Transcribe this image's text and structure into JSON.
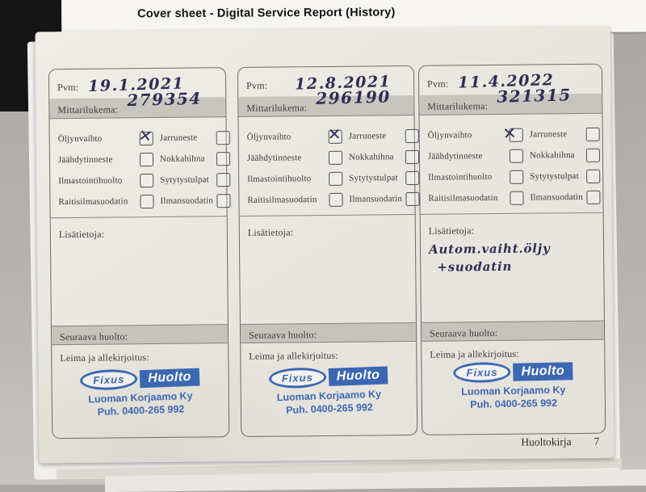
{
  "header": {
    "title": "Cover sheet - Digital Service Report (History)"
  },
  "labels": {
    "date": "Pvm:",
    "odometer": "Mittarilukema:",
    "notes": "Lisätietoja:",
    "next_service": "Seuraava huolto:",
    "stamp_signature": "Leima ja allekirjoitus:"
  },
  "service_items": [
    "Öljynvaihto",
    "Jarruneste",
    "Jäähdytinneste",
    "Nokkahihna",
    "Ilmastointihuolto",
    "Sytytystulpat",
    "Raitisilmasuodatin",
    "Ilmansuodatin"
  ],
  "panels": [
    {
      "date": "19.1.2021",
      "odometer": "279354",
      "checks": {
        "0": "✕"
      },
      "notes": [
        "",
        ""
      ]
    },
    {
      "date": "12.8.2021",
      "odometer": "296190",
      "checks": {
        "0": "✕"
      },
      "notes": [
        "",
        ""
      ]
    },
    {
      "date": "11.4.2022",
      "odometer": "321315",
      "checks": {
        "0": "✕"
      },
      "notes": [
        "Autom.vaiht.öljy",
        "+suodatin"
      ]
    }
  ],
  "stamp": {
    "logo_oval": "Fixus",
    "logo_box": "Huolto",
    "line1": "Luoman Korjaamo Ky",
    "line2": "Puh. 0400-265 992",
    "ink_color": "#2f5fb0"
  },
  "footer": {
    "label": "Huoltokirja",
    "page": "7"
  },
  "colors": {
    "page": "#e9e6df",
    "gray_bar": "#c8c5be",
    "handwriting_ink": "#2e2e55",
    "stamp_blue": "#2f5fb0",
    "table_leather": "#151515"
  }
}
